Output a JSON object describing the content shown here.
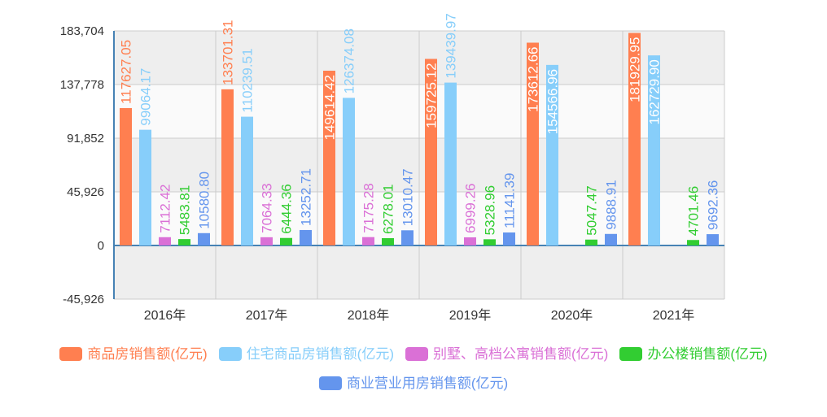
{
  "chart_data": {
    "type": "bar",
    "categories": [
      "2016年",
      "2017年",
      "2018年",
      "2019年",
      "2020年",
      "2021年"
    ],
    "ylim": [
      -45926,
      183704
    ],
    "yticks": [
      "183,704",
      "137,778",
      "91,852",
      "45,926",
      "0",
      "-45,926"
    ],
    "ytick_values": [
      183704,
      137778,
      91852,
      45926,
      0,
      -45926
    ],
    "grid": true,
    "legend_position": "bottom",
    "series": [
      {
        "name": "商品房销售额(亿元)",
        "color": "#FF7F50",
        "values": [
          117627.05,
          133701.31,
          149614.42,
          159725.12,
          173612.66,
          181929.95
        ]
      },
      {
        "name": "住宅商品房销售额(亿元)",
        "color": "#87CEFA",
        "values": [
          99064.17,
          110239.51,
          126374.08,
          139439.97,
          154566.96,
          162729.9
        ]
      },
      {
        "name": "别墅、高档公寓销售额(亿元)",
        "color": "#DA70D6",
        "values": [
          7112.42,
          7064.33,
          7175.28,
          6999.26,
          null,
          null
        ]
      },
      {
        "name": "办公楼销售额(亿元)",
        "color": "#32CD32",
        "values": [
          5483.81,
          6444.36,
          6278.01,
          5328.96,
          5047.47,
          4701.46
        ]
      },
      {
        "name": "商业营业用房销售额(亿元)",
        "color": "#6495ED",
        "values": [
          10580.8,
          13252.71,
          13010.47,
          11141.39,
          9888.91,
          9692.36
        ]
      }
    ]
  }
}
